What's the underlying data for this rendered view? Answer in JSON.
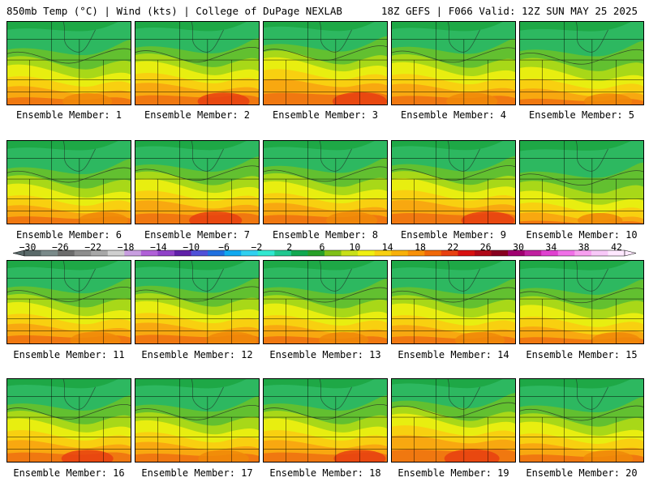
{
  "header": {
    "left": "850mb Temp (°C) | Wind (kts) | College of DuPage NEXLAB",
    "right": "18Z GEFS | F066 Valid: 12Z SUN MAY 25 2025"
  },
  "panels": [
    {
      "label": "Ensemble Member: 1",
      "warm": 0.55
    },
    {
      "label": "Ensemble Member: 2",
      "warm": 0.62
    },
    {
      "label": "Ensemble Member: 3",
      "warm": 0.7
    },
    {
      "label": "Ensemble Member: 4",
      "warm": 0.6
    },
    {
      "label": "Ensemble Member: 5",
      "warm": 0.5
    },
    {
      "label": "Ensemble Member: 6",
      "warm": 0.55
    },
    {
      "label": "Ensemble Member: 7",
      "warm": 0.65
    },
    {
      "label": "Ensemble Member: 8",
      "warm": 0.6
    },
    {
      "label": "Ensemble Member: 9",
      "warm": 0.66
    },
    {
      "label": "Ensemble Member: 10",
      "warm": 0.4
    },
    {
      "label": "Ensemble Member: 11",
      "warm": 0.58
    },
    {
      "label": "Ensemble Member: 12",
      "warm": 0.6
    },
    {
      "label": "Ensemble Member: 13",
      "warm": 0.55
    },
    {
      "label": "Ensemble Member: 14",
      "warm": 0.55
    },
    {
      "label": "Ensemble Member: 15",
      "warm": 0.52
    },
    {
      "label": "Ensemble Member: 16",
      "warm": 0.62
    },
    {
      "label": "Ensemble Member: 17",
      "warm": 0.58
    },
    {
      "label": "Ensemble Member: 18",
      "warm": 0.62
    },
    {
      "label": "Ensemble Member: 19",
      "warm": 0.72
    },
    {
      "label": "Ensemble Member: 20",
      "warm": 0.55
    }
  ],
  "colorbar": {
    "ticks": [
      "-30",
      "-26",
      "-22",
      "-18",
      "-14",
      "-10",
      "-6",
      "-2",
      "2",
      "6",
      "10",
      "14",
      "18",
      "22",
      "26",
      "30",
      "34",
      "38",
      "42"
    ],
    "colors": [
      "#5a6a6a",
      "#7a8a8a",
      "#6c6c6c",
      "#8e8e8e",
      "#a7a7a7",
      "#cfcfcf",
      "#c89ee0",
      "#b060d8",
      "#9040c8",
      "#6020a8",
      "#5050d8",
      "#2070e0",
      "#10a8f0",
      "#30d0f0",
      "#30e8d0",
      "#20c890",
      "#10a850",
      "#28a028",
      "#80c018",
      "#c8e018",
      "#f0f010",
      "#f8d010",
      "#f8b008",
      "#f89008",
      "#f06808",
      "#e84010",
      "#d81010",
      "#b00818",
      "#880020",
      "#a00070",
      "#c020a0",
      "#e040d0",
      "#f070e8",
      "#f8a0f0",
      "#f8c8f8",
      "#ffe8ff"
    ]
  }
}
